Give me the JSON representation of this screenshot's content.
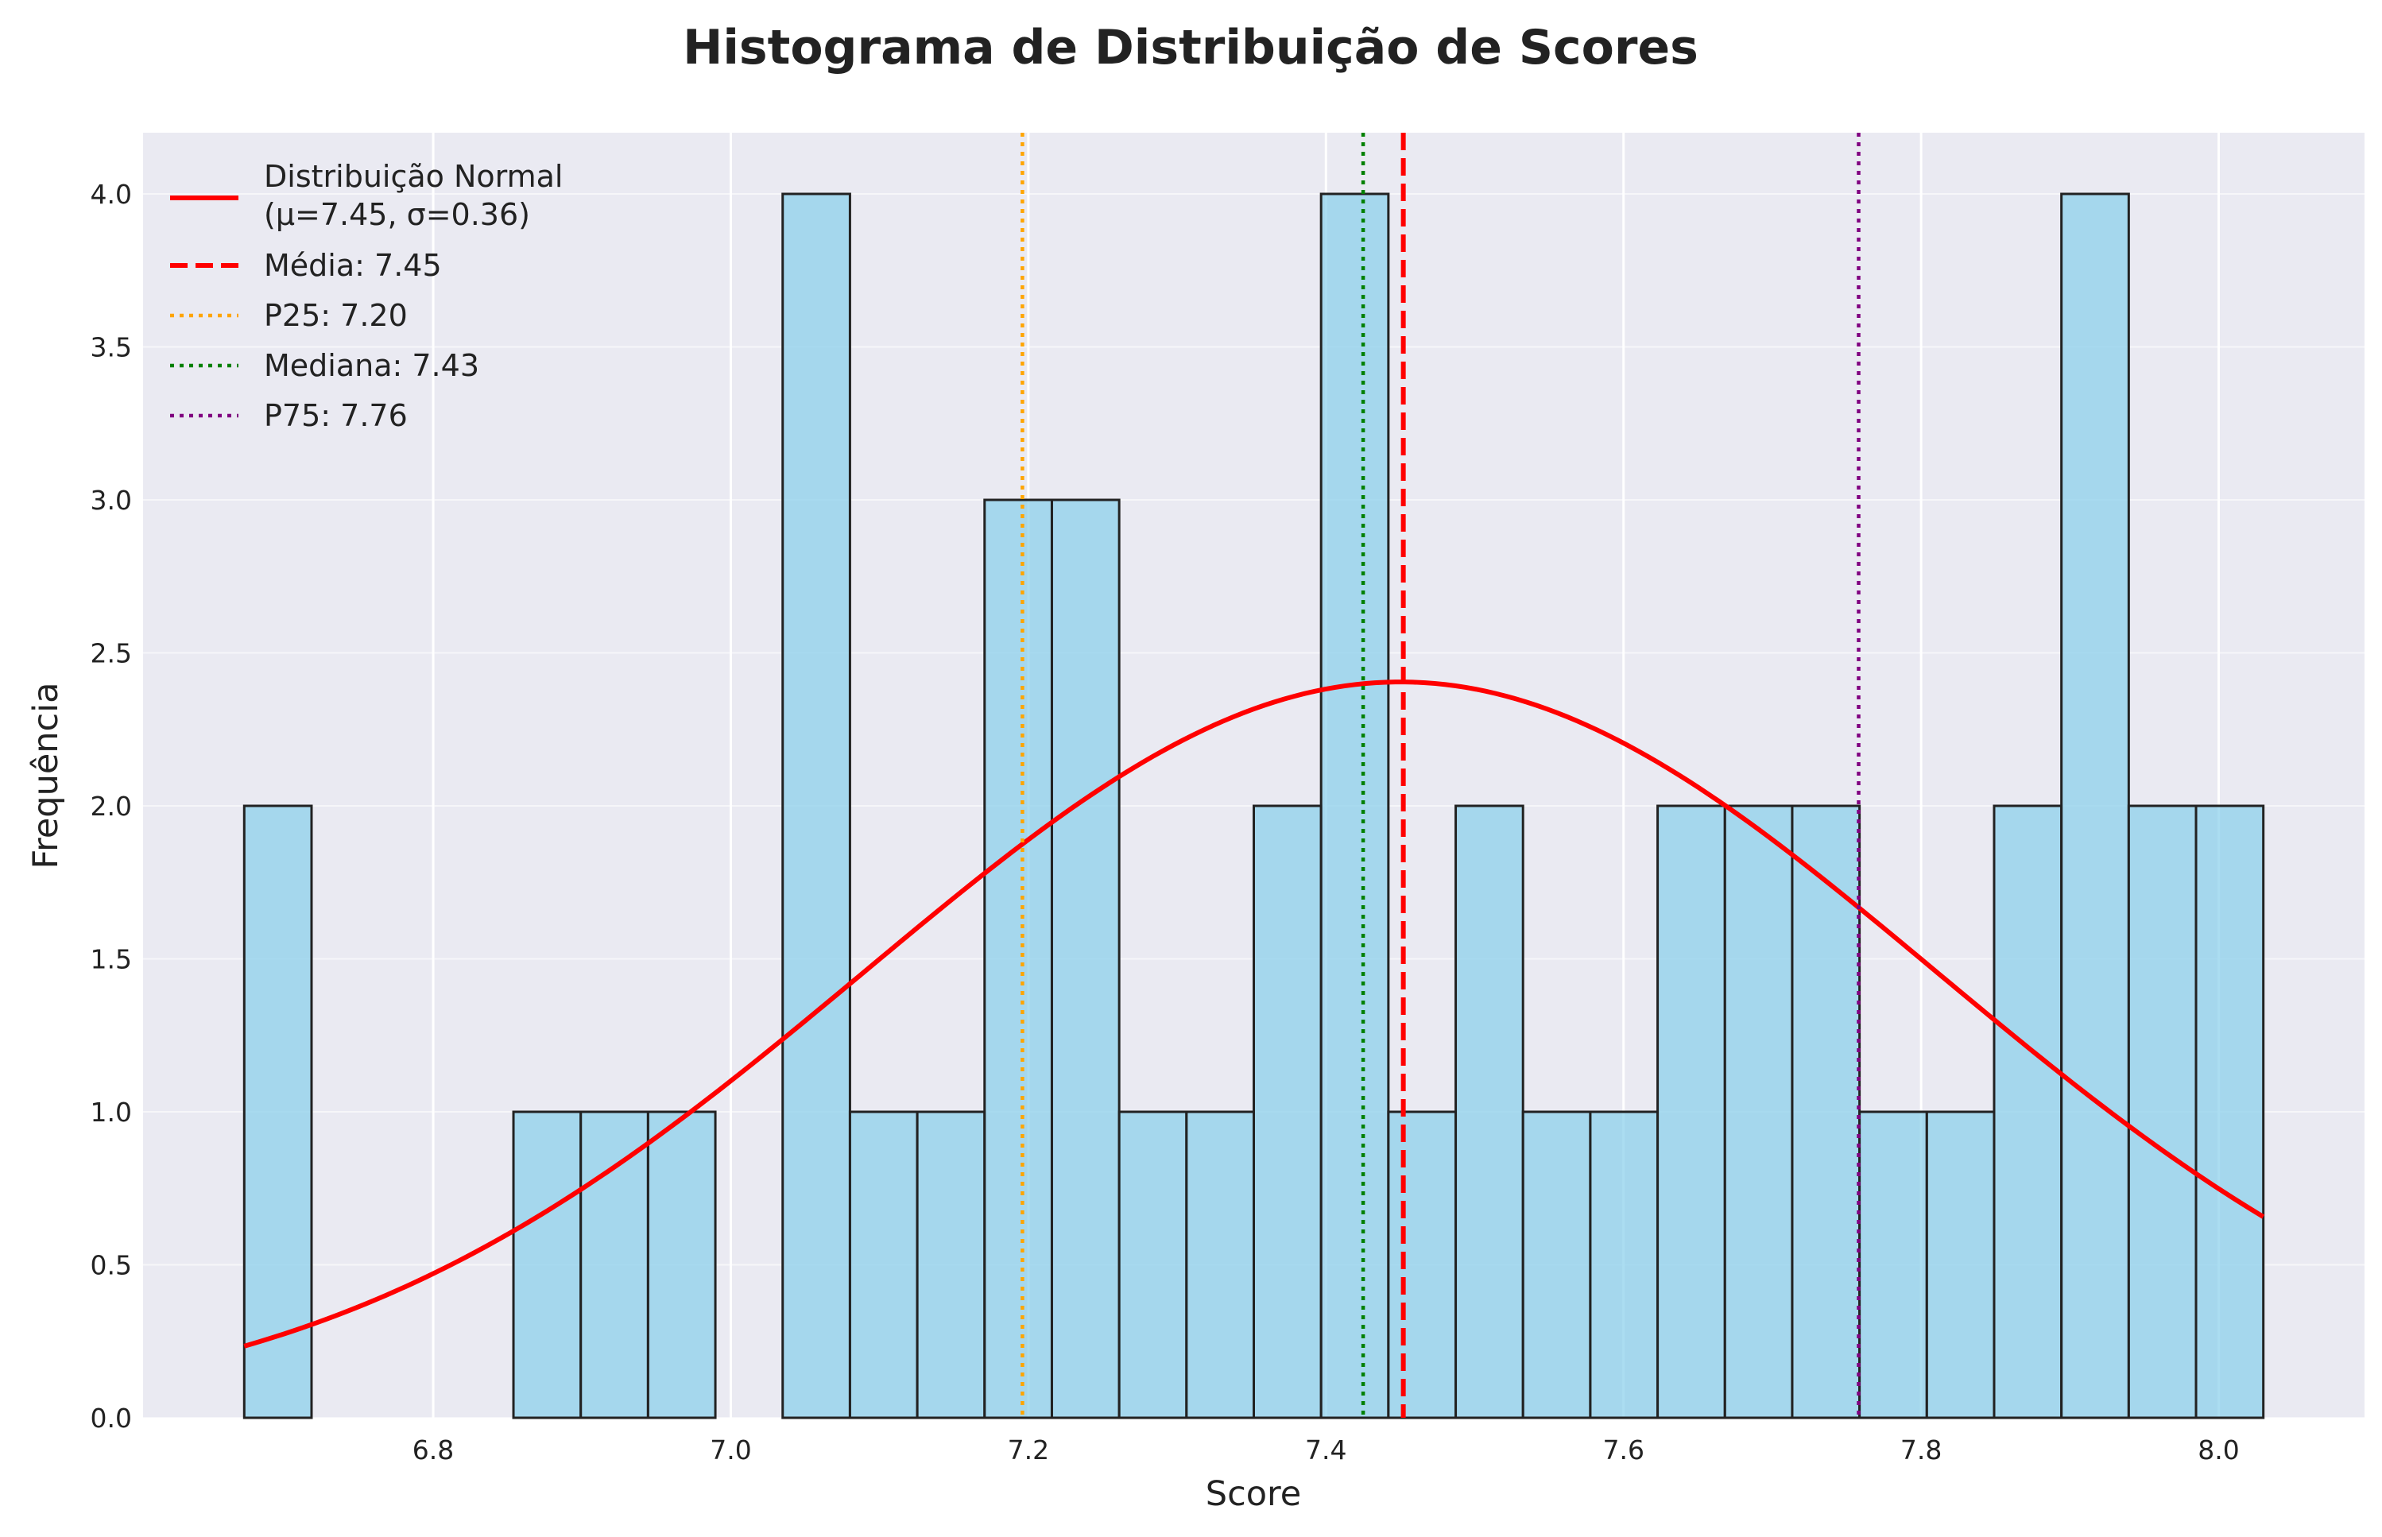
{
  "chart_data": {
    "type": "bar",
    "title": "Histograma de Distribuição de Scores",
    "xlabel": "Score",
    "ylabel": "Frequência",
    "xlim": [
      6.605,
      8.098
    ],
    "ylim": [
      0,
      4.2
    ],
    "xticks": [
      6.8,
      7.0,
      7.2,
      7.4,
      7.6,
      7.8,
      8.0
    ],
    "xtick_labels": [
      "6.8",
      "7.0",
      "7.2",
      "7.4",
      "7.6",
      "7.8",
      "8.0"
    ],
    "yticks": [
      0,
      0.5,
      1.0,
      1.5,
      2.0,
      2.5,
      3.0,
      3.5,
      4.0
    ],
    "ytick_labels": [
      "0.0",
      "0.5",
      "1.0",
      "1.5",
      "2.0",
      "2.5",
      "3.0",
      "3.5",
      "4.0"
    ],
    "grid": true,
    "legend_position": "top-left",
    "bins": {
      "start": 6.673,
      "end": 8.03,
      "counts": [
        2,
        0,
        0,
        0,
        1,
        1,
        1,
        0,
        4,
        1,
        1,
        3,
        3,
        1,
        1,
        2,
        4,
        1,
        2,
        1,
        1,
        2,
        2,
        2,
        1,
        1,
        2,
        4,
        2,
        2
      ],
      "color": "#87ceeb",
      "edge_color": "#222222"
    },
    "normal_curve": {
      "label_line1": "Distribuição Normal",
      "label_line2": "(μ=7.45, σ=0.36)",
      "mu": 7.45,
      "sigma": 0.36,
      "peak": 2.405,
      "x_range": [
        6.673,
        8.03
      ],
      "color": "#ff0000"
    },
    "reference_lines": [
      {
        "name": "mean",
        "label": "Média: 7.45",
        "x": 7.452,
        "color": "#ff0000",
        "style": "dashed"
      },
      {
        "name": "p25",
        "label": "P25: 7.20",
        "x": 7.196,
        "color": "#ffa500",
        "style": "dotted"
      },
      {
        "name": "median",
        "label": "Mediana: 7.43",
        "x": 7.425,
        "color": "#008000",
        "style": "dotted"
      },
      {
        "name": "p75",
        "label": "P75: 7.76",
        "x": 7.758,
        "color": "#800080",
        "style": "dotted"
      }
    ],
    "plot_background": "#eaeaf2",
    "grid_color": "#ffffff"
  }
}
